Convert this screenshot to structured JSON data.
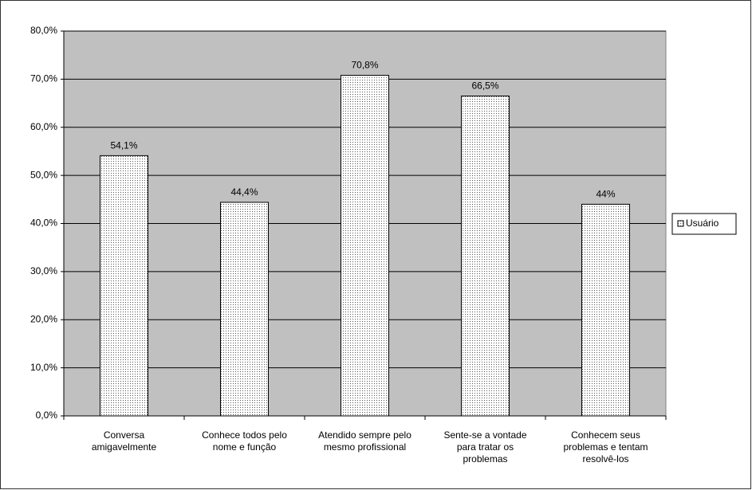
{
  "chart_data": {
    "type": "bar",
    "categories": [
      "Conversa amigavelmente",
      "Conhece todos pelo nome e função",
      "Atendido sempre pelo mesmo profissional",
      "Sente-se a vontade para tratar os problemas",
      "Conhecem seus problemas e tentam resolvê-los"
    ],
    "series": [
      {
        "name": "Usuário",
        "color": "#ffffff",
        "values": [
          54.1,
          44.4,
          70.8,
          66.5,
          44
        ],
        "value_labels": [
          "54,1%",
          "44,4%",
          "70,8%",
          "66,5%",
          "44%"
        ]
      }
    ],
    "ylim": [
      0,
      80
    ],
    "yticks": [
      {
        "value": 0,
        "label": "0,0%"
      },
      {
        "value": 10,
        "label": "10,0%"
      },
      {
        "value": 20,
        "label": "20,0%"
      },
      {
        "value": 30,
        "label": "30,0%"
      },
      {
        "value": 40,
        "label": "40,0%"
      },
      {
        "value": 50,
        "label": "50,0%"
      },
      {
        "value": 60,
        "label": "60,0%"
      },
      {
        "value": 70,
        "label": "70,0%"
      },
      {
        "value": 80,
        "label": "80,0%"
      }
    ],
    "grid": true,
    "plot_background": "#c0c0c0",
    "legend": "right"
  }
}
